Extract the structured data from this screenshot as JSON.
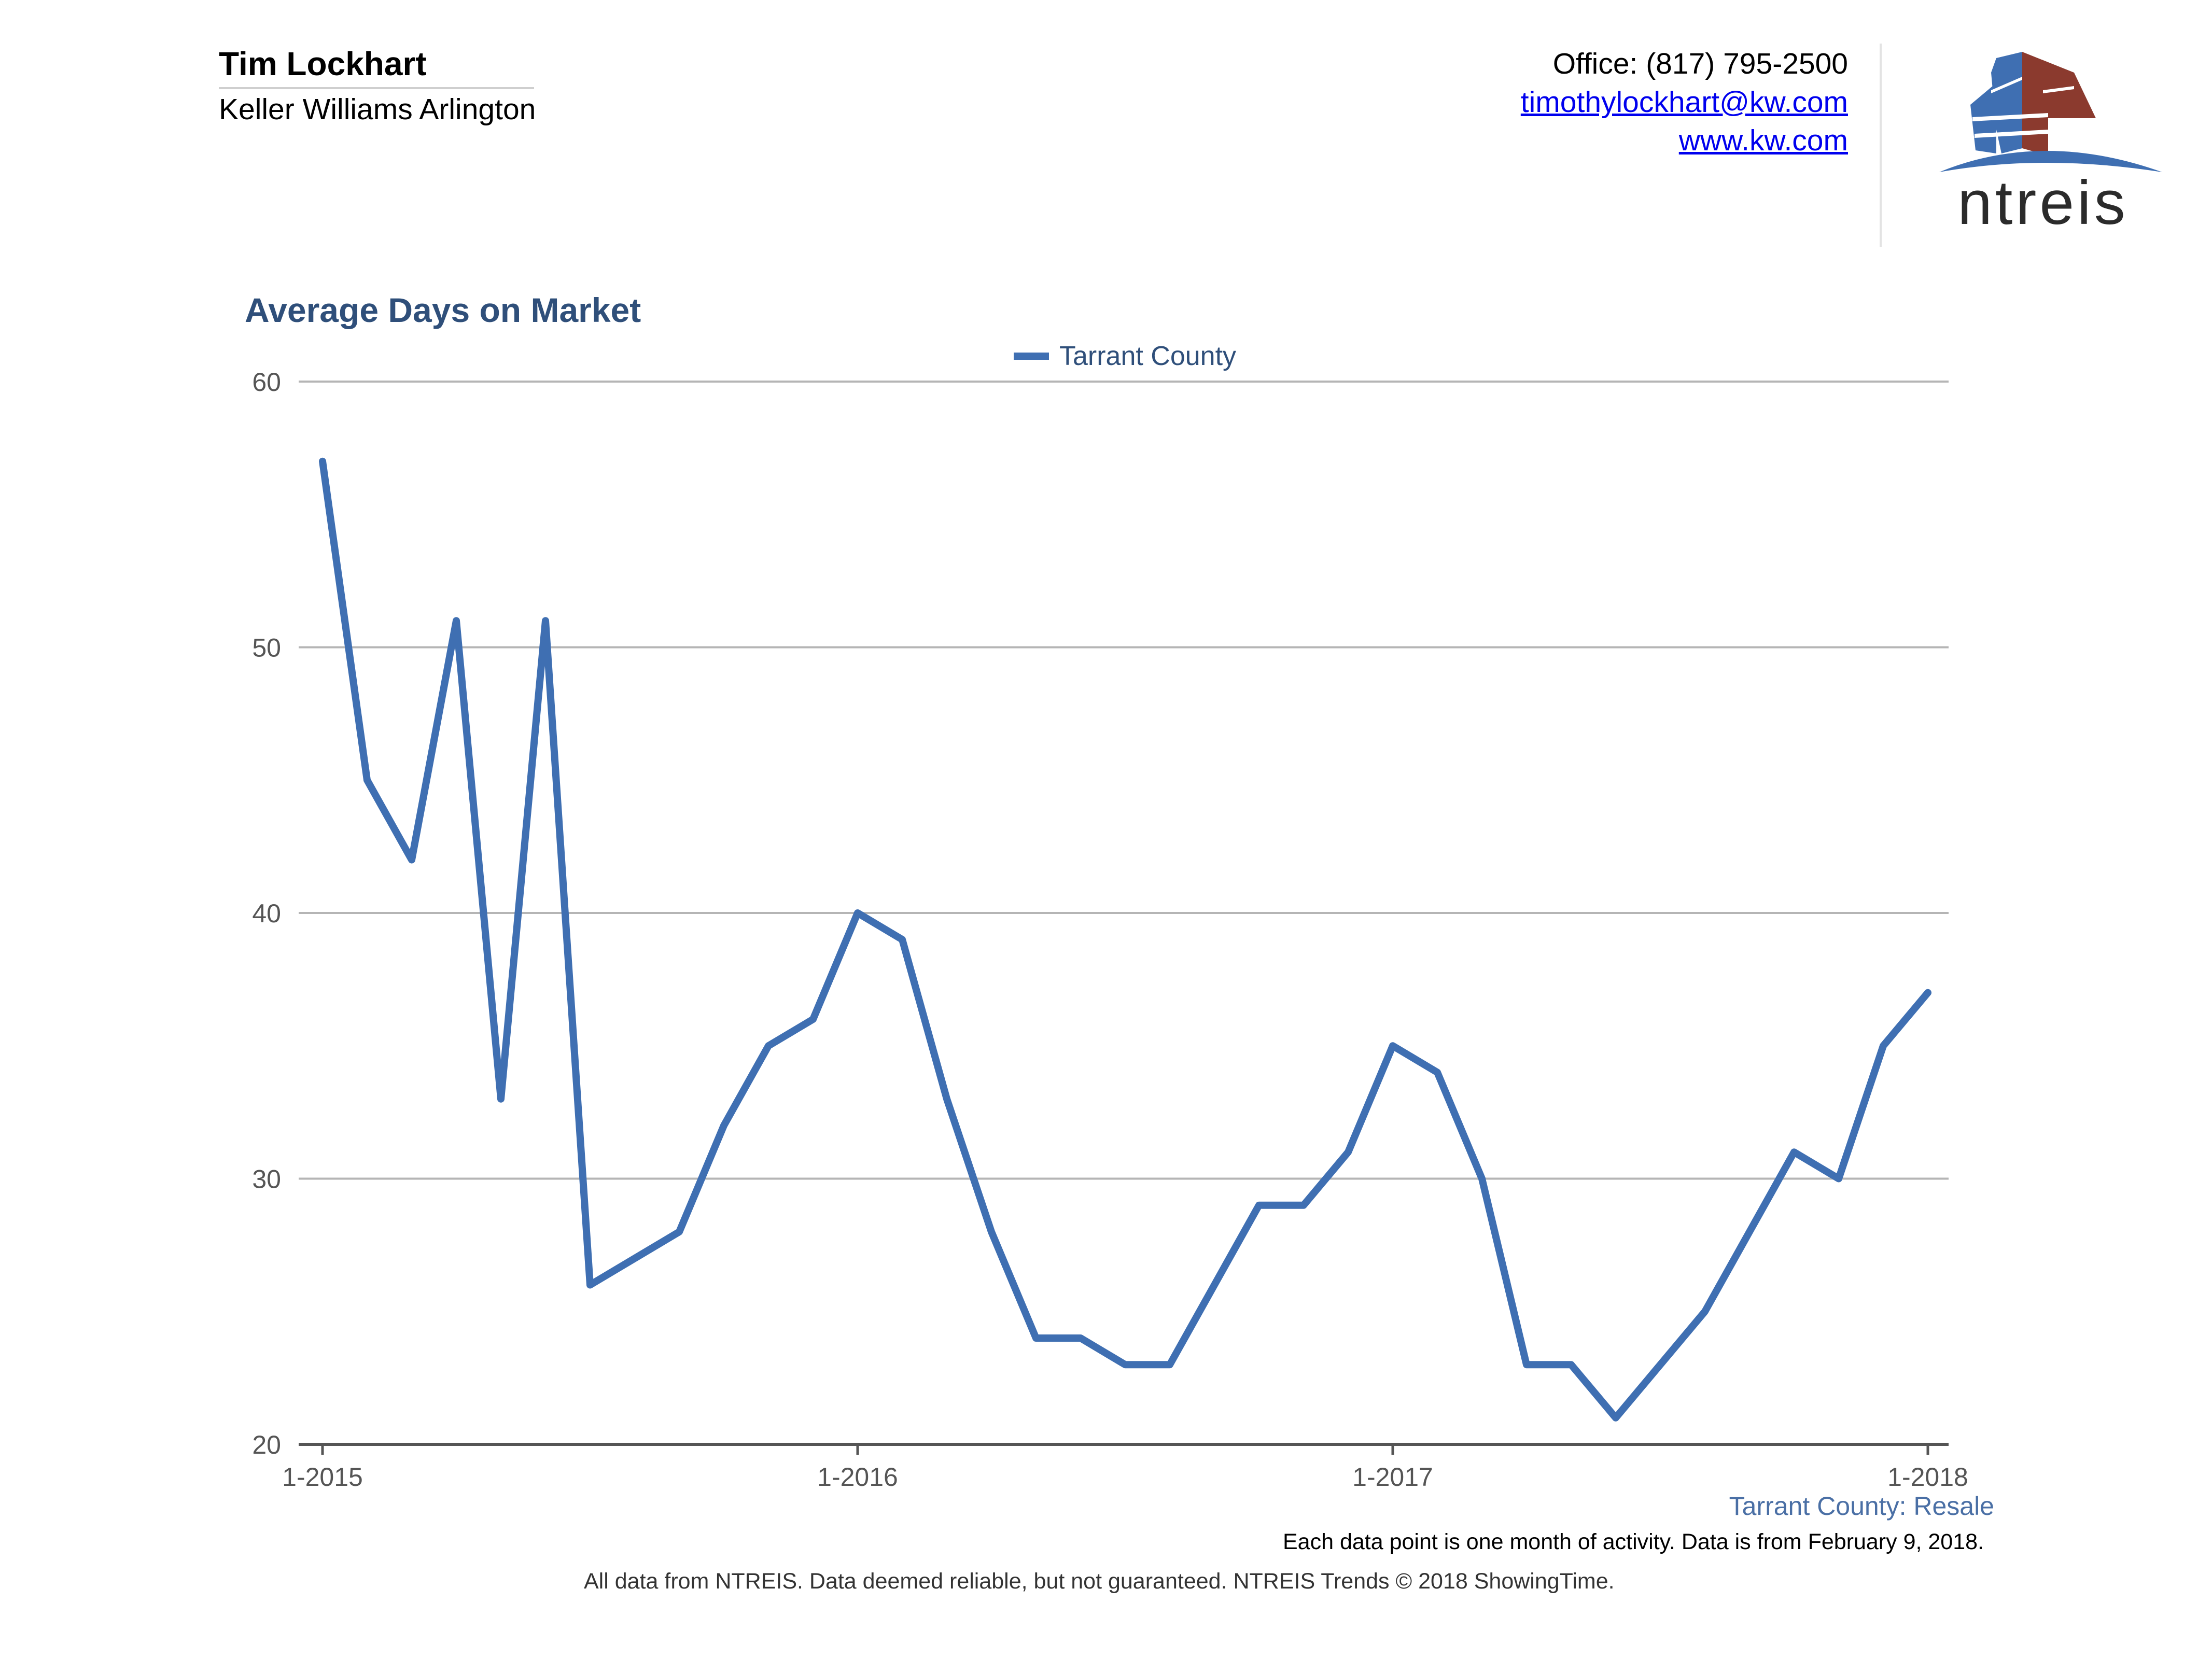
{
  "header": {
    "agent_name": "Tim Lockhart",
    "company": "Keller Williams Arlington",
    "office_phone": "Office: (817) 795-2500",
    "email": "timothylockhart@kw.com",
    "website": "www.kw.com"
  },
  "logo": {
    "brand": "ntreis",
    "icon": "ntreis-building-logo-icon"
  },
  "colors": {
    "series": "#3f6fb2",
    "title": "#2f4f7a",
    "logo_blue": "#3f6fb2",
    "logo_red": "#8b3a2e",
    "gridline": "#b5b5b5"
  },
  "chart_data": {
    "type": "line",
    "title": "Average Days on Market",
    "xlabel": "",
    "ylabel": "",
    "ylim": [
      20,
      60
    ],
    "yticks": [
      20,
      30,
      40,
      50,
      60
    ],
    "legend_position": "top-center",
    "grid": true,
    "x_tick_labels": [
      "1-2015",
      "1-2016",
      "1-2017",
      "1-2018"
    ],
    "categories": [
      "1-2015",
      "2-2015",
      "3-2015",
      "4-2015",
      "5-2015",
      "6-2015",
      "7-2015",
      "8-2015",
      "9-2015",
      "10-2015",
      "11-2015",
      "12-2015",
      "1-2016",
      "2-2016",
      "3-2016",
      "4-2016",
      "5-2016",
      "6-2016",
      "7-2016",
      "8-2016",
      "9-2016",
      "10-2016",
      "11-2016",
      "12-2016",
      "1-2017",
      "2-2017",
      "3-2017",
      "4-2017",
      "5-2017",
      "6-2017",
      "7-2017",
      "8-2017",
      "9-2017",
      "10-2017",
      "11-2017",
      "12-2017",
      "1-2018"
    ],
    "series": [
      {
        "name": "Tarrant County",
        "values": [
          57,
          45,
          42,
          51,
          33,
          51,
          26,
          27,
          28,
          32,
          35,
          36,
          40,
          39,
          33,
          28,
          24,
          24,
          23,
          23,
          26,
          29,
          29,
          31,
          35,
          34,
          30,
          23,
          23,
          21,
          23,
          25,
          28,
          31,
          30,
          35,
          37
        ]
      }
    ]
  },
  "captions": {
    "series_caption": "Tarrant County: Resale",
    "footnote": "Each data point is one month of activity. Data is from February 9, 2018.",
    "disclaimer": "All data from NTREIS. Data deemed reliable, but not guaranteed. NTREIS Trends © 2018 ShowingTime."
  }
}
